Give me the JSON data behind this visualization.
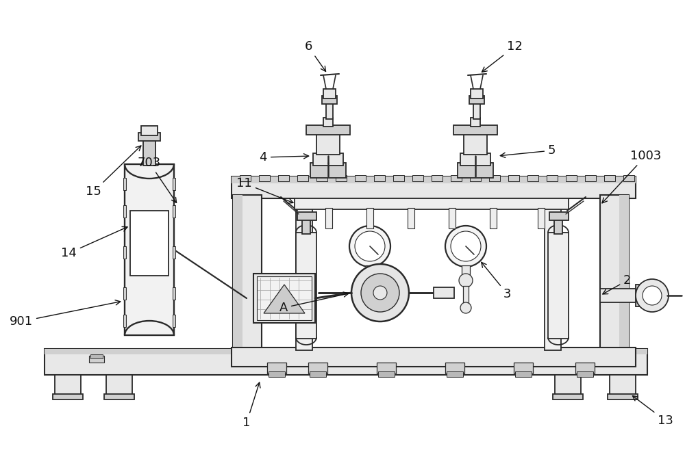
{
  "bg_color": "#ffffff",
  "line_color": "#2a2a2a",
  "fill_light": "#e8e8e8",
  "fill_mid": "#d0d0d0",
  "fill_dark": "#b8b8b8",
  "lw": 1.3,
  "label_fontsize": 13,
  "arrow_color": "#111111"
}
